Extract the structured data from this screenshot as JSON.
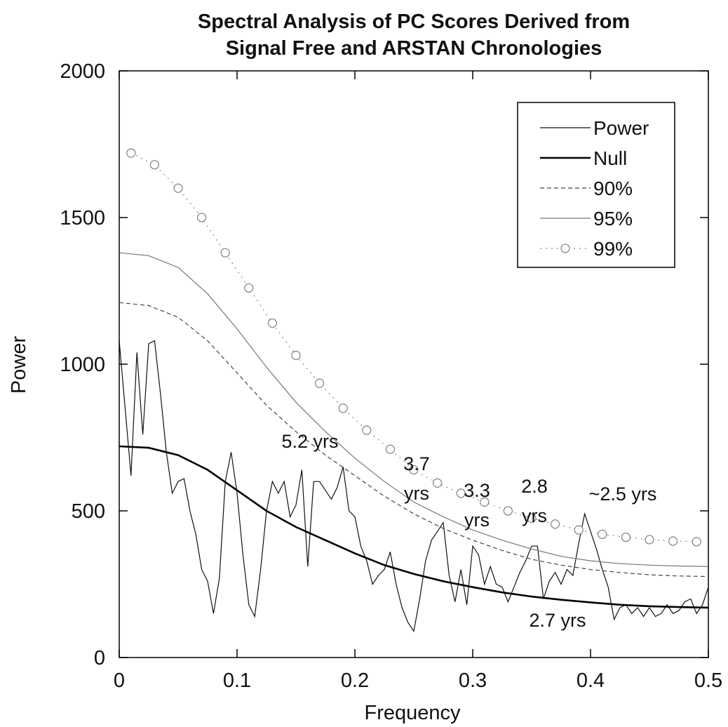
{
  "chart_data": {
    "type": "line",
    "title": [
      "Spectral Analysis of PC Scores Derived from",
      "Signal Free and ARSTAN Chronologies"
    ],
    "x_label": "Frequency",
    "y_label": "Power",
    "xlim": [
      0,
      0.5
    ],
    "xticks": [
      0,
      0.1,
      0.2,
      0.3,
      0.4,
      0.5
    ],
    "ylim": [
      0,
      2000
    ],
    "yticks": [
      0,
      500,
      1000,
      1500,
      2000
    ],
    "legend": "top-right",
    "series": [
      {
        "name": "Power",
        "color": "#111111",
        "style": "solid",
        "x": [
          0,
          0.005,
          0.01,
          0.015,
          0.02,
          0.025,
          0.03,
          0.035,
          0.04,
          0.045,
          0.05,
          0.055,
          0.06,
          0.065,
          0.07,
          0.075,
          0.08,
          0.085,
          0.09,
          0.095,
          0.1,
          0.105,
          0.11,
          0.115,
          0.12,
          0.125,
          0.13,
          0.135,
          0.14,
          0.145,
          0.15,
          0.155,
          0.16,
          0.165,
          0.17,
          0.175,
          0.18,
          0.185,
          0.19,
          0.195,
          0.2,
          0.205,
          0.21,
          0.215,
          0.22,
          0.225,
          0.23,
          0.235,
          0.24,
          0.245,
          0.25,
          0.255,
          0.26,
          0.265,
          0.27,
          0.275,
          0.28,
          0.285,
          0.29,
          0.295,
          0.3,
          0.305,
          0.31,
          0.315,
          0.32,
          0.325,
          0.33,
          0.335,
          0.34,
          0.345,
          0.35,
          0.355,
          0.36,
          0.365,
          0.37,
          0.375,
          0.38,
          0.385,
          0.39,
          0.395,
          0.4,
          0.405,
          0.41,
          0.415,
          0.42,
          0.425,
          0.43,
          0.435,
          0.44,
          0.445,
          0.45,
          0.455,
          0.46,
          0.465,
          0.47,
          0.475,
          0.48,
          0.485,
          0.49,
          0.495,
          0.5
        ],
        "values": [
          1080,
          850,
          620,
          1040,
          760,
          1070,
          1080,
          900,
          700,
          560,
          600,
          610,
          500,
          420,
          300,
          260,
          150,
          270,
          600,
          700,
          560,
          350,
          180,
          140,
          300,
          500,
          600,
          560,
          600,
          480,
          520,
          640,
          310,
          600,
          600,
          570,
          540,
          580,
          650,
          500,
          480,
          380,
          330,
          250,
          280,
          300,
          360,
          250,
          170,
          120,
          90,
          200,
          330,
          400,
          430,
          460,
          280,
          190,
          300,
          180,
          380,
          350,
          250,
          310,
          250,
          240,
          190,
          240,
          290,
          330,
          380,
          380,
          200,
          260,
          290,
          250,
          300,
          280,
          390,
          490,
          430,
          370,
          300,
          240,
          130,
          170,
          180,
          150,
          170,
          140,
          170,
          140,
          150,
          180,
          150,
          160,
          190,
          200,
          150,
          180,
          240
        ]
      },
      {
        "name": "Null",
        "color": "#000000",
        "style": "thick",
        "x": [
          0,
          0.025,
          0.05,
          0.075,
          0.1,
          0.125,
          0.15,
          0.175,
          0.2,
          0.225,
          0.25,
          0.275,
          0.3,
          0.325,
          0.35,
          0.375,
          0.4,
          0.425,
          0.45,
          0.475,
          0.5
        ],
        "values": [
          720,
          715,
          690,
          640,
          570,
          500,
          445,
          400,
          355,
          315,
          285,
          260,
          240,
          222,
          208,
          197,
          188,
          180,
          175,
          172,
          170
        ]
      },
      {
        "name": "90%",
        "color": "#444444",
        "style": "dashed",
        "x": [
          0,
          0.025,
          0.05,
          0.075,
          0.1,
          0.125,
          0.15,
          0.175,
          0.2,
          0.225,
          0.25,
          0.275,
          0.3,
          0.325,
          0.35,
          0.375,
          0.4,
          0.425,
          0.45,
          0.475,
          0.5
        ],
        "values": [
          1210,
          1200,
          1160,
          1080,
          970,
          860,
          770,
          690,
          620,
          550,
          490,
          440,
          400,
          365,
          335,
          315,
          300,
          290,
          282,
          278,
          276
        ]
      },
      {
        "name": "95%",
        "color": "#777777",
        "style": "solid",
        "x": [
          0,
          0.025,
          0.05,
          0.075,
          0.1,
          0.125,
          0.15,
          0.175,
          0.2,
          0.225,
          0.25,
          0.275,
          0.3,
          0.325,
          0.35,
          0.375,
          0.4,
          0.425,
          0.45,
          0.475,
          0.5
        ],
        "values": [
          1380,
          1370,
          1330,
          1240,
          1120,
          990,
          870,
          770,
          680,
          600,
          530,
          480,
          435,
          400,
          370,
          345,
          330,
          320,
          315,
          312,
          310
        ]
      },
      {
        "name": "99%",
        "color": "#888888",
        "style": "dotted-circles",
        "x": [
          0.01,
          0.03,
          0.05,
          0.07,
          0.09,
          0.11,
          0.13,
          0.15,
          0.17,
          0.19,
          0.21,
          0.23,
          0.25,
          0.27,
          0.29,
          0.31,
          0.33,
          0.35,
          0.37,
          0.39,
          0.41,
          0.43,
          0.45,
          0.47,
          0.49
        ],
        "values": [
          1720,
          1680,
          1600,
          1500,
          1380,
          1260,
          1140,
          1030,
          935,
          850,
          775,
          710,
          640,
          595,
          560,
          530,
          500,
          475,
          455,
          435,
          420,
          410,
          402,
          397,
          395
        ]
      }
    ],
    "annotations": [
      [
        "5.2 yrs"
      ],
      [
        "3.7",
        "yrs"
      ],
      [
        "3.3",
        "yrs"
      ],
      [
        "2.8",
        "yrs"
      ],
      [
        "~2.5 yrs"
      ],
      [
        "2.7 yrs"
      ]
    ]
  }
}
